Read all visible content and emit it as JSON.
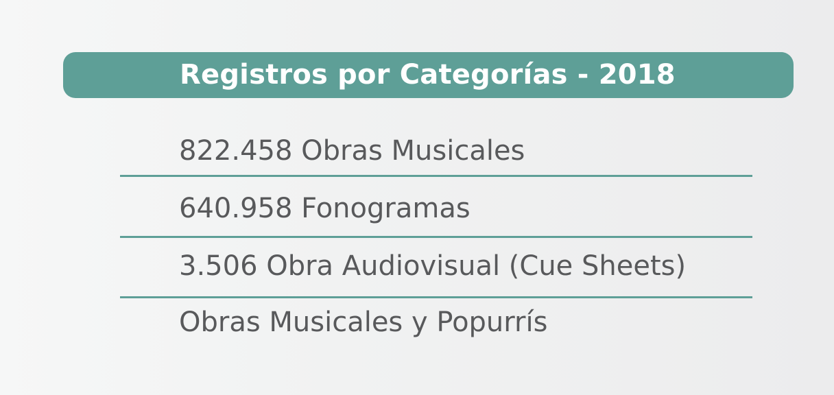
{
  "header": {
    "title": "Registros por Categorías - 2018"
  },
  "items": [
    {
      "label": "822.458 Obras Musicales"
    },
    {
      "label": "640.958 Fonogramas"
    },
    {
      "label": "3.506 Obra Audiovisual (Cue Sheets)"
    },
    {
      "label": "Obras Musicales y Popurrís"
    }
  ],
  "colors": {
    "accent": "#5e9f97",
    "text": "#58595b",
    "header_text": "#ffffff",
    "background": "#f1f2f2"
  }
}
